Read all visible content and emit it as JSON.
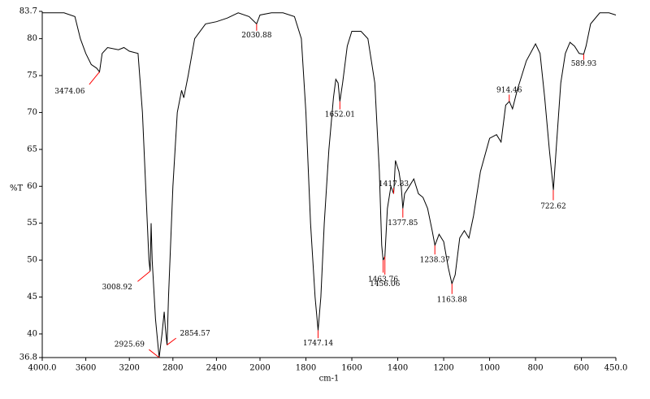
{
  "chart_data": {
    "type": "line",
    "x_label": "cm-1",
    "y_label": "%T",
    "xlim": [
      4000,
      450
    ],
    "x_scale_break": 2000,
    "xticks": [
      {
        "value": 4000,
        "label": "4000.0"
      },
      3600,
      3200,
      2800,
      2400,
      2000,
      1800,
      1600,
      1400,
      1200,
      1000,
      800,
      600,
      {
        "value": 450,
        "label": "450.0"
      }
    ],
    "ylim": [
      36.8,
      83.7
    ],
    "yticks": [
      36.8,
      40,
      45,
      50,
      55,
      60,
      65,
      70,
      75,
      80,
      83.7
    ],
    "series": [
      {
        "color": "#000000",
        "x": [
          4000,
          3800,
          3700,
          3650,
          3600,
          3550,
          3500,
          3474,
          3450,
          3400,
          3300,
          3250,
          3200,
          3120,
          3080,
          3050,
          3020,
          3009,
          3000,
          2990,
          2960,
          2926,
          2900,
          2880,
          2870,
          2854,
          2840,
          2800,
          2760,
          2720,
          2700,
          2660,
          2600,
          2500,
          2400,
          2300,
          2200,
          2100,
          2031,
          2000,
          1950,
          1900,
          1850,
          1820,
          1800,
          1780,
          1760,
          1747,
          1735,
          1720,
          1700,
          1680,
          1670,
          1660,
          1652,
          1640,
          1620,
          1600,
          1560,
          1530,
          1500,
          1480,
          1470,
          1464,
          1456,
          1445,
          1430,
          1418,
          1410,
          1395,
          1385,
          1378,
          1370,
          1350,
          1330,
          1310,
          1290,
          1270,
          1250,
          1238,
          1220,
          1200,
          1180,
          1164,
          1150,
          1130,
          1110,
          1090,
          1070,
          1040,
          1000,
          970,
          950,
          930,
          914,
          900,
          880,
          840,
          800,
          780,
          760,
          740,
          722,
          710,
          690,
          670,
          650,
          630,
          610,
          590,
          580,
          560,
          520,
          480,
          450
        ],
        "values": [
          83.5,
          83.5,
          83,
          80,
          78,
          76.5,
          76,
          75.5,
          78,
          78.8,
          78.5,
          78.8,
          78.3,
          78,
          70,
          60,
          50,
          48.5,
          55,
          50,
          42,
          36.8,
          40,
          43,
          41,
          38.5,
          45,
          60,
          70,
          73,
          72,
          75,
          80,
          82,
          82.3,
          82.8,
          83.5,
          83,
          82,
          83.2,
          83.5,
          83.5,
          83,
          80,
          70,
          55,
          45,
          40.5,
          45,
          55,
          65,
          72,
          74.5,
          74,
          71.5,
          74,
          79,
          81,
          81,
          80,
          74,
          62,
          52,
          50,
          50.5,
          57,
          60,
          59,
          63.5,
          62,
          60,
          57,
          59,
          60,
          61,
          59,
          58.5,
          57,
          54,
          52,
          53.5,
          52.5,
          49,
          46.8,
          48,
          53,
          54,
          53,
          56,
          62,
          66.5,
          67,
          66,
          71,
          71.5,
          70.5,
          73,
          77,
          79.3,
          78,
          72,
          65,
          59.5,
          65,
          74,
          78,
          79.5,
          79,
          78,
          77.9,
          79,
          82,
          83.5,
          83.5,
          83.2
        ]
      }
    ],
    "peaks": [
      {
        "x": 3474.06,
        "y": 75.5
      },
      {
        "x": 3008.92,
        "y": 48.5
      },
      {
        "x": 2925.69,
        "y": 36.8
      },
      {
        "x": 2854.57,
        "y": 38.5
      },
      {
        "x": 2030.88,
        "y": 82
      },
      {
        "x": 1747.14,
        "y": 40.5
      },
      {
        "x": 1652.01,
        "y": 71.5
      },
      {
        "x": 1463.76,
        "y": 50
      },
      {
        "x": 1456.06,
        "y": 50.5
      },
      {
        "x": 1417.83,
        "y": 59
      },
      {
        "x": 1377.85,
        "y": 57
      },
      {
        "x": 1238.37,
        "y": 52
      },
      {
        "x": 1163.88,
        "y": 46.8
      },
      {
        "x": 914.46,
        "y": 71.5
      },
      {
        "x": 722.62,
        "y": 59.5
      },
      {
        "x": 589.93,
        "y": 77.9
      }
    ],
    "peak_color": "#ff0000"
  }
}
